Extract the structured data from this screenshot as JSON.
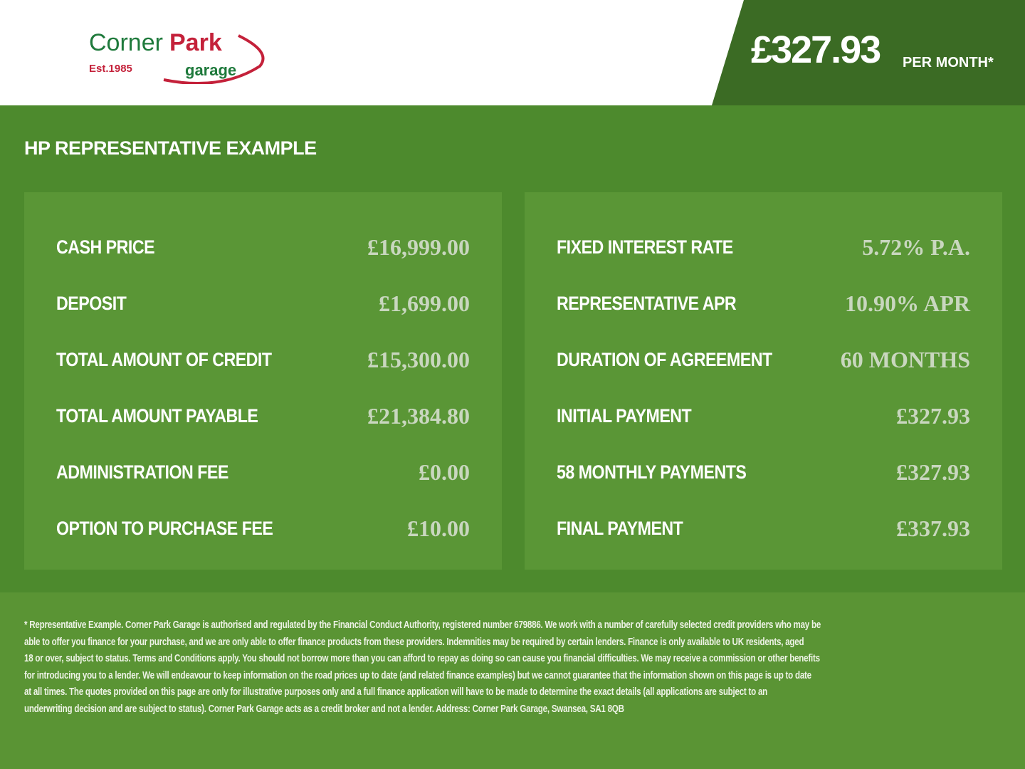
{
  "brand": {
    "name_part1": "Corner",
    "name_part2": "Park",
    "sub": "garage",
    "est": "Est.1985",
    "green": "#1f7a3c",
    "red": "#c4213a"
  },
  "header": {
    "price": "£327.93",
    "per_month": "PER MONTH*"
  },
  "colors": {
    "main_bg": "#4d8a2d",
    "panel_bg": "#5a9636",
    "header_band": "#3b6b24",
    "footer_bg": "#5a9434"
  },
  "title": "HP REPRESENTATIVE EXAMPLE",
  "left": [
    {
      "label": "CASH PRICE",
      "value": "£16,999.00"
    },
    {
      "label": "DEPOSIT",
      "value": "£1,699.00"
    },
    {
      "label": "TOTAL AMOUNT OF CREDIT",
      "value": "£15,300.00"
    },
    {
      "label": "TOTAL AMOUNT PAYABLE",
      "value": "£21,384.80"
    },
    {
      "label": "ADMINISTRATION FEE",
      "value": "£0.00"
    },
    {
      "label": "OPTION TO PURCHASE FEE",
      "value": "£10.00"
    }
  ],
  "right": [
    {
      "label": "FIXED INTEREST RATE",
      "value": "5.72% P.A."
    },
    {
      "label": "REPRESENTATIVE APR",
      "value": "10.90% APR"
    },
    {
      "label": "DURATION OF AGREEMENT",
      "value": "60 MONTHS"
    },
    {
      "label": "INITIAL PAYMENT",
      "value": "£327.93"
    },
    {
      "label": "58 MONTHLY PAYMENTS",
      "value": "£327.93"
    },
    {
      "label": "FINAL PAYMENT",
      "value": "£337.93"
    }
  ],
  "footer": {
    "lines": [
      "* Representative Example. Corner Park Garage is authorised and regulated by the Financial Conduct Authority, registered number 679886. We work with a number of carefully selected credit providers who may be",
      "able to offer you finance for your purchase, and we are only able to offer finance products from these providers. Indemnities may be required by certain lenders. Finance is only available to UK residents, aged",
      "18 or over, subject to status. Terms and Conditions apply. You should not borrow more than you can afford to repay as doing so can cause you financial difficulties. We may receive a commission or other benefits",
      "for introducing you to a lender. We will endeavour to keep information on the road prices up to date (and related finance examples) but we cannot guarantee that the information shown on this page is up to date",
      "at all times. The quotes provided on this page are only for illustrative purposes only and a full finance application will have to be made to determine the exact details (all applications are subject to an",
      "underwriting decision and are subject to status). Corner Park Garage acts as a credit broker and not a lender. Address: Corner Park Garage, Swansea, SA1 8QB"
    ]
  }
}
